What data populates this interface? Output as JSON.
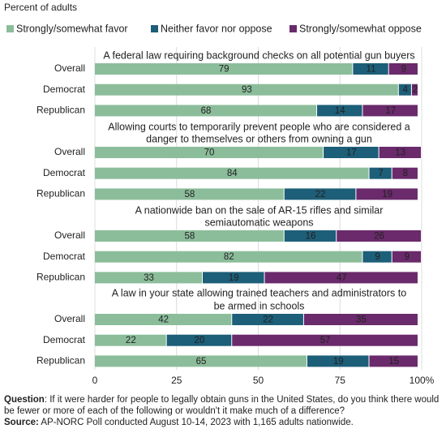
{
  "subtitle": "Percent of adults",
  "chart_data": [
    {
      "type": "bar",
      "stacked": true,
      "orientation": "horizontal",
      "title": [
        "A federal law requiring background checks on all potential gun buyers"
      ],
      "categories": [
        "Overall",
        "Democrat",
        "Republican"
      ],
      "series": [
        {
          "name": "Strongly/somewhat favor",
          "color": "#8cbd9b",
          "values": [
            79,
            93,
            68
          ]
        },
        {
          "name": "Neither favor nor oppose",
          "color": "#1d5e78",
          "values": [
            11,
            4,
            14
          ]
        },
        {
          "name": "Strongly/somewhat oppose",
          "color": "#6a2a6b",
          "values": [
            9,
            2,
            17
          ]
        }
      ],
      "xlim": [
        0,
        100
      ]
    },
    {
      "type": "bar",
      "stacked": true,
      "orientation": "horizontal",
      "title": [
        "Allowing courts to temporarily prevent people who are considered a",
        "danger to themselves or others  from owning a gun"
      ],
      "categories": [
        "Overall",
        "Democrat",
        "Republican"
      ],
      "series": [
        {
          "name": "Strongly/somewhat favor",
          "color": "#8cbd9b",
          "values": [
            70,
            84,
            58
          ]
        },
        {
          "name": "Neither favor nor oppose",
          "color": "#1d5e78",
          "values": [
            17,
            7,
            22
          ]
        },
        {
          "name": "Strongly/somewhat oppose",
          "color": "#6a2a6b",
          "values": [
            13,
            8,
            19
          ]
        }
      ],
      "xlim": [
        0,
        100
      ]
    },
    {
      "type": "bar",
      "stacked": true,
      "orientation": "horizontal",
      "title": [
        "A nationwide ban on the sale of AR-15 rifles and similar",
        "semiautomatic weapons"
      ],
      "categories": [
        "Overall",
        "Democrat",
        "Republican"
      ],
      "series": [
        {
          "name": "Strongly/somewhat favor",
          "color": "#8cbd9b",
          "values": [
            58,
            82,
            33
          ]
        },
        {
          "name": "Neither favor nor oppose",
          "color": "#1d5e78",
          "values": [
            16,
            9,
            19
          ]
        },
        {
          "name": "Strongly/somewhat oppose",
          "color": "#6a2a6b",
          "values": [
            26,
            9,
            47
          ]
        }
      ],
      "xlim": [
        0,
        100
      ]
    },
    {
      "type": "bar",
      "stacked": true,
      "orientation": "horizontal",
      "title": [
        "A law in your state allowing trained teachers and administrators to",
        "be armed in schools"
      ],
      "categories": [
        "Overall",
        "Democrat",
        "Republican"
      ],
      "series": [
        {
          "name": "Strongly/somewhat favor",
          "color": "#8cbd9b",
          "values": [
            42,
            22,
            65
          ]
        },
        {
          "name": "Neither favor nor oppose",
          "color": "#1d5e78",
          "values": [
            22,
            20,
            19
          ]
        },
        {
          "name": "Strongly/somewhat oppose",
          "color": "#6a2a6b",
          "values": [
            35,
            57,
            15
          ]
        }
      ],
      "xlim": [
        0,
        100
      ],
      "xticks": [
        0,
        25,
        50,
        75,
        {
          "value": 100,
          "label": "100%"
        }
      ],
      "grid": true
    }
  ],
  "footer": {
    "question_label": "Question",
    "question": ": If it were harder for people to legally obtain guns in the United States, do you think there would be fewer or more of each of the following or wouldn't it make much of a difference?",
    "source_label": "Source:",
    "source": " AP-NORC Poll conducted August 10-14, 2023 with 1,165 adults nationwide."
  }
}
